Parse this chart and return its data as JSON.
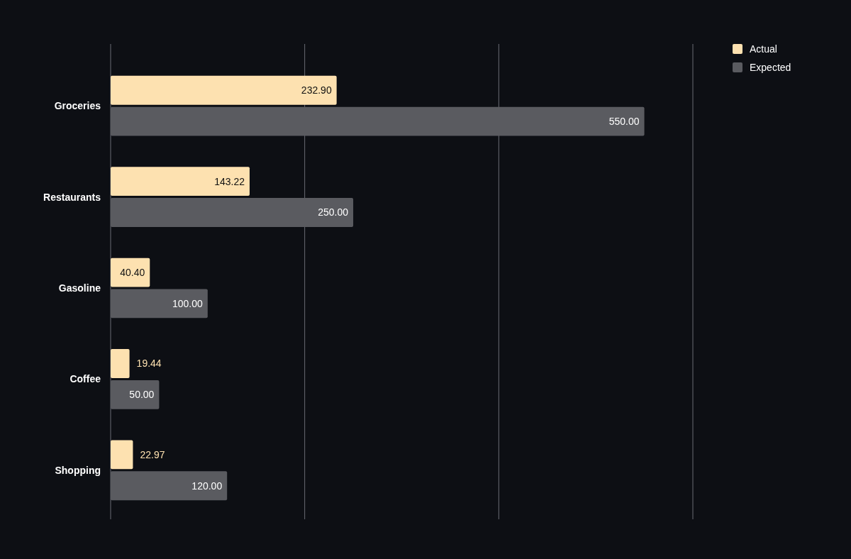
{
  "chart_data": {
    "type": "bar",
    "orientation": "horizontal",
    "categories": [
      "Groceries",
      "Restaurants",
      "Gasoline",
      "Coffee",
      "Shopping"
    ],
    "series": [
      {
        "name": "Actual",
        "color": "#fde1b0",
        "values": [
          232.9,
          143.22,
          40.4,
          19.44,
          22.97
        ],
        "value_labels": [
          "232.90",
          "143.22",
          "40.40",
          "19.44",
          "22.97"
        ]
      },
      {
        "name": "Expected",
        "color": "#5a5b60",
        "values": [
          550,
          250,
          100,
          50,
          120
        ],
        "value_labels": [
          "550.00",
          "250.00",
          "100.00",
          "50.00",
          "120.00"
        ]
      }
    ],
    "xlim": [
      0,
      600
    ],
    "xticks": [
      {
        "value": 0,
        "label": null
      },
      {
        "value": 200,
        "label": null
      },
      {
        "value": 400,
        "label": null
      },
      {
        "value": 600,
        "label": null
      }
    ],
    "grid": "x",
    "tick_labels": "y",
    "legend": "top right"
  }
}
